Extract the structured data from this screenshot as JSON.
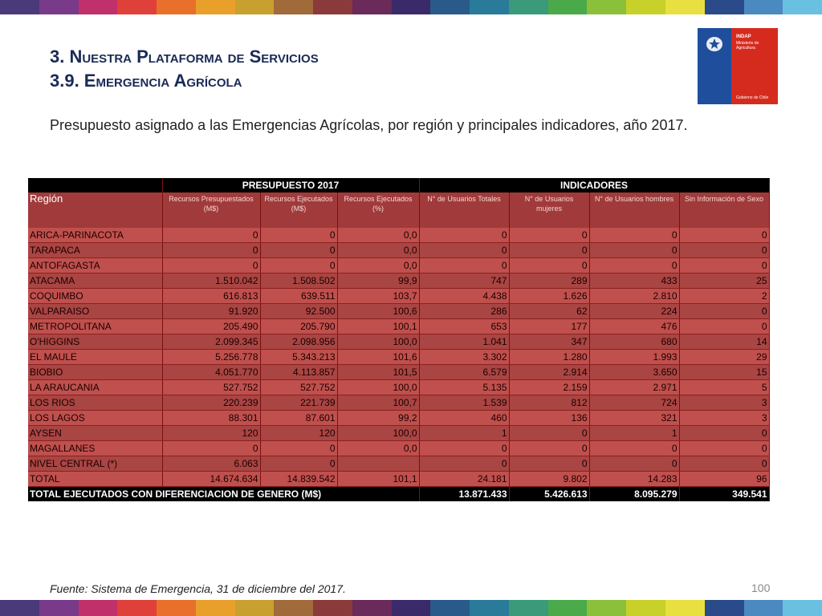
{
  "colors": {
    "stripe": [
      "#4a3a7a",
      "#7a3a8a",
      "#c0306a",
      "#e0403a",
      "#e8702a",
      "#e8a02a",
      "#c8a030",
      "#a06a3a",
      "#8a3a3a",
      "#6a2a5a",
      "#3a2a6a",
      "#2a5a8a",
      "#2a7a9a",
      "#3a9a7a",
      "#4aaa4a",
      "#8ac03a",
      "#c8d02a",
      "#e8e040",
      "#2a4a8a",
      "#4a8ac0",
      "#6ac0e0"
    ],
    "header": "#000000",
    "row_light": "#c0504d",
    "row_dark": "#a94543"
  },
  "title": {
    "line1": "3. Nuestra Plataforma de Servicios",
    "line2": "3.9. Emergencia Agrícola"
  },
  "logo": {
    "line1": "INDAP",
    "line2": "Ministerio de Agricultura",
    "line3": "Gobierno de Chile",
    "icon": "chile-coat-of-arms-icon"
  },
  "subtitle": "Presupuesto asignado a las Emergencias Agrícolas, por región y principales indicadores, año 2017.",
  "table": {
    "group_headers": [
      "PRESUPUESTO 2017",
      "INDICADORES"
    ],
    "col_headers": [
      "Región",
      "Recursos Presupuestados (M$)",
      "Recursos Ejecutados (M$)",
      "Recursos Ejecutados (%)",
      "N° de Usuarios Totales",
      "N° de Usuarios mujeres",
      "N° de Usuarios hombres",
      "Sin Información de Sexo"
    ],
    "rows": [
      [
        "ARICA-PARINACOTA",
        "0",
        "0",
        "0,0",
        "0",
        "0",
        "0",
        "0"
      ],
      [
        "TARAPACA",
        "0",
        "0",
        "0,0",
        "0",
        "0",
        "0",
        "0"
      ],
      [
        "ANTOFAGASTA",
        "0",
        "0",
        "0,0",
        "0",
        "0",
        "0",
        "0"
      ],
      [
        "ATACAMA",
        "1.510.042",
        "1.508.502",
        "99,9",
        "747",
        "289",
        "433",
        "25"
      ],
      [
        "COQUIMBO",
        "616.813",
        "639.511",
        "103,7",
        "4.438",
        "1.626",
        "2.810",
        "2"
      ],
      [
        "VALPARAISO",
        "91.920",
        "92.500",
        "100,6",
        "286",
        "62",
        "224",
        "0"
      ],
      [
        "METROPOLITANA",
        "205.490",
        "205.790",
        "100,1",
        "653",
        "177",
        "476",
        "0"
      ],
      [
        "O'HIGGINS",
        "2.099.345",
        "2.098.956",
        "100,0",
        "1.041",
        "347",
        "680",
        "14"
      ],
      [
        "EL MAULE",
        "5.256.778",
        "5.343.213",
        "101,6",
        "3.302",
        "1.280",
        "1.993",
        "29"
      ],
      [
        "BIOBIO",
        "4.051.770",
        "4.113.857",
        "101,5",
        "6.579",
        "2.914",
        "3.650",
        "15"
      ],
      [
        "LA ARAUCANIA",
        "527.752",
        "527.752",
        "100,0",
        "5.135",
        "2.159",
        "2.971",
        "5"
      ],
      [
        "LOS RIOS",
        "220.239",
        "221.739",
        "100,7",
        "1.539",
        "812",
        "724",
        "3"
      ],
      [
        "LOS LAGOS",
        "88.301",
        "87.601",
        "99,2",
        "460",
        "136",
        "321",
        "3"
      ],
      [
        "AYSEN",
        "120",
        "120",
        "100,0",
        "1",
        "0",
        "1",
        "0"
      ],
      [
        "MAGALLANES",
        "0",
        "0",
        "0,0",
        "0",
        "0",
        "0",
        "0"
      ],
      [
        "NIVEL CENTRAL (*)",
        "6.063",
        "0",
        "",
        "0",
        "0",
        "0",
        "0"
      ],
      [
        "TOTAL",
        "14.674.634",
        "14.839.542",
        "101,1",
        "24.181",
        "9.802",
        "14.283",
        "96"
      ]
    ],
    "footer": {
      "label": "TOTAL EJECUTADOS CON DIFERENCIACION DE GENERO (M$)",
      "values": [
        "13.871.433",
        "5.426.613",
        "8.095.279",
        "349.541"
      ]
    }
  },
  "source": "Fuente: Sistema de Emergencia, 31 de diciembre del 2017.",
  "page_number": "100"
}
